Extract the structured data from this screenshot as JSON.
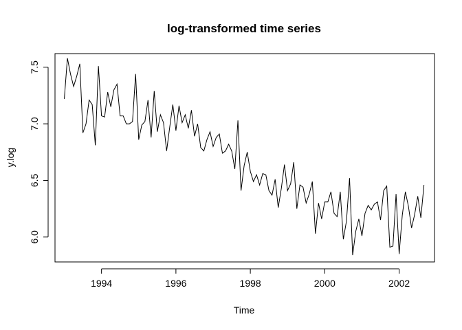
{
  "chart_data": {
    "type": "line",
    "title": "log-transformed time series",
    "xlabel": "Time",
    "ylabel": "y.log",
    "xlim": [
      1992.75,
      2002.95
    ],
    "ylim": [
      5.78,
      7.62
    ],
    "xticks": [
      1994,
      1996,
      1998,
      2000,
      2002
    ],
    "xtick_labels": [
      "1994",
      "1996",
      "1998",
      "2000",
      "2002"
    ],
    "yticks": [
      6.0,
      6.5,
      7.0,
      7.5
    ],
    "ytick_labels": [
      "6.0",
      "6.5",
      "7.0",
      "7.5"
    ],
    "grid": false,
    "series": [
      {
        "name": "y.log",
        "start": 1993.0,
        "frequency": 12,
        "values": [
          7.22,
          7.58,
          7.44,
          7.33,
          7.42,
          7.53,
          6.92,
          7.0,
          7.21,
          7.17,
          6.81,
          7.51,
          7.07,
          7.06,
          7.28,
          7.15,
          7.3,
          7.35,
          7.07,
          7.07,
          7.0,
          7.0,
          7.02,
          7.44,
          6.86,
          6.99,
          7.02,
          7.21,
          6.88,
          7.29,
          6.93,
          7.08,
          7.01,
          6.76,
          6.97,
          7.17,
          6.94,
          7.16,
          7.01,
          7.08,
          6.96,
          7.12,
          6.89,
          7.0,
          6.79,
          6.76,
          6.86,
          6.93,
          6.8,
          6.88,
          6.91,
          6.74,
          6.76,
          6.82,
          6.76,
          6.6,
          7.03,
          6.41,
          6.63,
          6.75,
          6.58,
          6.49,
          6.55,
          6.46,
          6.56,
          6.55,
          6.41,
          6.37,
          6.51,
          6.26,
          6.43,
          6.64,
          6.41,
          6.47,
          6.66,
          6.25,
          6.46,
          6.44,
          6.3,
          6.38,
          6.49,
          6.03,
          6.3,
          6.16,
          6.31,
          6.31,
          6.4,
          6.21,
          6.18,
          6.4,
          5.98,
          6.14,
          6.52,
          5.84,
          6.05,
          6.16,
          6.01,
          6.21,
          6.28,
          6.24,
          6.29,
          6.31,
          6.15,
          6.41,
          6.45,
          5.91,
          5.92,
          6.38,
          5.85,
          6.19,
          6.4,
          6.27,
          6.08,
          6.2,
          6.36,
          6.17,
          6.46
        ]
      }
    ]
  }
}
